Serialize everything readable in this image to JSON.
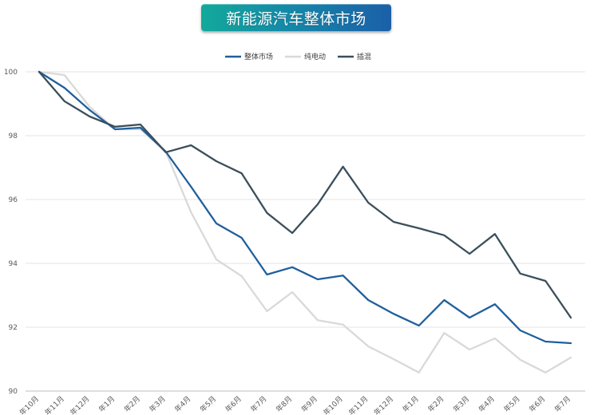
{
  "chart_data": {
    "type": "line",
    "title": "新能源汽车整体市场",
    "ylim": [
      90,
      100
    ],
    "yticks": [
      90,
      92,
      94,
      96,
      98,
      100
    ],
    "grid": true,
    "legend_position": "top",
    "categories": [
      "年10月",
      "年11月",
      "年12月",
      "年1月",
      "年2月",
      "年3月",
      "年4月",
      "年5月",
      "年6月",
      "年7月",
      "年8月",
      "年9月",
      "年10月",
      "年11月",
      "年12月",
      "年1月",
      "年2月",
      "年3月",
      "年4月",
      "年5月",
      "年6月",
      "年7月"
    ],
    "series": [
      {
        "name": "整体市场",
        "color": "#1f5f9c",
        "values": [
          100,
          99.5,
          98.8,
          98.2,
          98.25,
          97.5,
          96.4,
          95.25,
          94.8,
          93.65,
          93.88,
          93.5,
          93.62,
          92.85,
          92.42,
          92.05,
          92.85,
          92.3,
          92.72,
          91.9,
          91.55,
          91.5
        ]
      },
      {
        "name": "纯电动",
        "color": "#d9d9d9",
        "values": [
          100,
          99.9,
          98.9,
          98.2,
          98.2,
          97.5,
          95.6,
          94.12,
          93.6,
          92.5,
          93.1,
          92.22,
          92.08,
          91.4,
          91.0,
          90.58,
          91.82,
          91.3,
          91.65,
          90.98,
          90.58,
          91.05
        ]
      },
      {
        "name": "插混",
        "color": "#3a4f5c",
        "values": [
          100,
          99.08,
          98.6,
          98.28,
          98.35,
          97.48,
          97.7,
          97.2,
          96.82,
          95.58,
          94.95,
          95.85,
          97.03,
          95.9,
          95.3,
          95.1,
          94.88,
          94.3,
          94.92,
          93.68,
          93.45,
          92.3
        ]
      }
    ]
  }
}
